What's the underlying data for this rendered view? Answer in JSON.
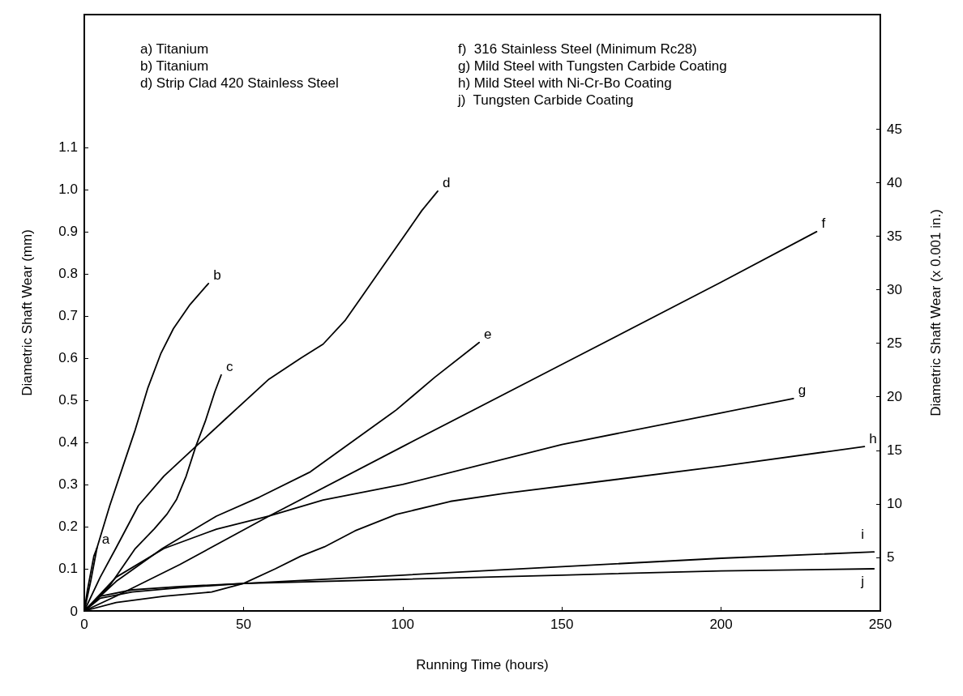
{
  "chart_data": {
    "type": "line",
    "xlabel": "Running Time (hours)",
    "ylabel": "Diametric Shaft Wear (mm)",
    "y2label": "Diametric Shaft Wear (x 0.001 in.)",
    "xlim": [
      0,
      250
    ],
    "xticks": [
      0,
      50,
      100,
      150,
      200,
      250
    ],
    "ylim": [
      0,
      1.415
    ],
    "yticks": [
      0,
      {
        "value": 0.1,
        "label": "0.1"
      },
      {
        "value": 0.2,
        "label": "0.2"
      },
      {
        "value": 0.3,
        "label": "0.3"
      },
      {
        "value": 0.4,
        "label": "0.4"
      },
      {
        "value": 0.5,
        "label": "0.5"
      },
      {
        "value": 0.6,
        "label": "0.6"
      },
      {
        "value": 0.7,
        "label": "0.7"
      },
      {
        "value": 0.8,
        "label": "0.8"
      },
      {
        "value": 0.9,
        "label": "0.9"
      },
      {
        "value": 1,
        "label": "1.0"
      },
      {
        "value": 1.1,
        "label": "1.1"
      }
    ],
    "y2lim": [
      0,
      55.7
    ],
    "y2ticks": [
      5,
      10,
      15,
      20,
      25,
      30,
      35,
      40,
      45
    ],
    "grid": false,
    "legend": false,
    "marker": "none",
    "line_style": "solid",
    "annotations": [
      "a) Titanium",
      "b) Titanium",
      "d) Strip Clad 420 Stainless Steel",
      "f)  316 Stainless Steel (Minimum Rc28)",
      "g) Mild Steel with Tungsten Carbide Coating",
      "h) Mild Steel with Ni-Cr-Bo Coating",
      "j)  Tungsten Carbide Coating"
    ],
    "series": [
      {
        "name": "a",
        "color": "#000000",
        "x": [
          0,
          1,
          2,
          3,
          4
        ],
        "values": [
          0,
          0.05,
          0.09,
          0.13,
          0.15
        ]
      },
      {
        "name": "b",
        "color": "#000000",
        "x": [
          0,
          2,
          4,
          8,
          12,
          16,
          20,
          24,
          28,
          33,
          39
        ],
        "values": [
          0,
          0.07,
          0.15,
          0.25,
          0.34,
          0.43,
          0.53,
          0.61,
          0.67,
          0.725,
          0.777
        ]
      },
      {
        "name": "c",
        "color": "#000000",
        "x": [
          0,
          8,
          16,
          22,
          26,
          29,
          32,
          35,
          38,
          41,
          43
        ],
        "values": [
          0,
          0.06,
          0.148,
          0.195,
          0.23,
          0.265,
          0.32,
          0.39,
          0.45,
          0.52,
          0.56
        ]
      },
      {
        "name": "d",
        "color": "#000000",
        "x": [
          0,
          5,
          10,
          17,
          25,
          35,
          45,
          58,
          68,
          75,
          82,
          87,
          94,
          100.5,
          106,
          111
        ],
        "values": [
          0,
          0.08,
          0.15,
          0.25,
          0.32,
          0.39,
          0.46,
          0.55,
          0.6,
          0.633,
          0.69,
          0.744,
          0.82,
          0.89,
          0.95,
          0.996
        ]
      },
      {
        "name": "e",
        "color": "#000000",
        "x": [
          0,
          10,
          24.5,
          41.5,
          55,
          71,
          87,
          98,
          110,
          124
        ],
        "values": [
          0,
          0.07,
          0.148,
          0.225,
          0.27,
          0.33,
          0.417,
          0.477,
          0.554,
          0.637
        ]
      },
      {
        "name": "f",
        "color": "#000000",
        "x": [
          0,
          10,
          30,
          58,
          100,
          150,
          200,
          230
        ],
        "values": [
          0,
          0.035,
          0.11,
          0.225,
          0.39,
          0.585,
          0.78,
          0.9
        ]
      },
      {
        "name": "g",
        "color": "#000000",
        "x": [
          0,
          10,
          25,
          41.5,
          58,
          75,
          100,
          150,
          200,
          222.7
        ],
        "values": [
          0,
          0.08,
          0.148,
          0.194,
          0.225,
          0.263,
          0.3,
          0.395,
          0.47,
          0.504
        ]
      },
      {
        "name": "h",
        "color": "#000000",
        "x": [
          0,
          10,
          25,
          40,
          50,
          60,
          68,
          75.4,
          85,
          98,
          115,
          132,
          165,
          200.5,
          245
        ],
        "values": [
          0,
          0.02,
          0.035,
          0.045,
          0.065,
          0.1,
          0.13,
          0.152,
          0.19,
          0.229,
          0.26,
          0.279,
          0.31,
          0.344,
          0.39
        ]
      },
      {
        "name": "i",
        "color": "#000000",
        "x": [
          0,
          5,
          15,
          30,
          50,
          100,
          150,
          200,
          248
        ],
        "values": [
          0,
          0.03,
          0.045,
          0.055,
          0.065,
          0.085,
          0.105,
          0.125,
          0.14
        ]
      },
      {
        "name": "j",
        "color": "#000000",
        "x": [
          0,
          5,
          15,
          30,
          50,
          100,
          150,
          200,
          248
        ],
        "values": [
          0,
          0.035,
          0.05,
          0.058,
          0.065,
          0.075,
          0.085,
          0.095,
          0.1
        ]
      }
    ]
  }
}
